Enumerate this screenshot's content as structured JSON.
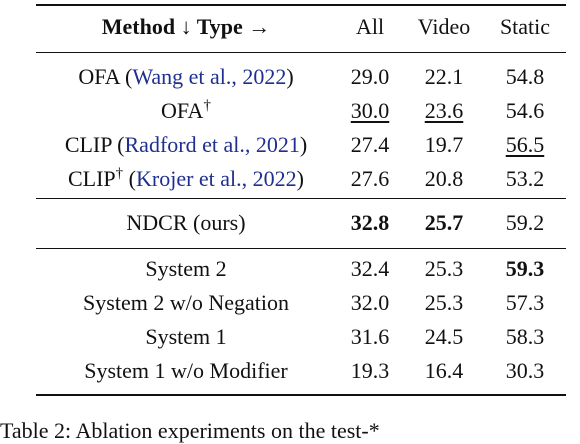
{
  "table": {
    "header": {
      "method_label": "Method",
      "method_arrow": "↓",
      "type_label": "Type",
      "type_arrow": "→",
      "columns": [
        "All",
        "Video",
        "Static"
      ]
    },
    "rows": [
      {
        "name": "OFA",
        "dagger": "",
        "cite": "Wang et al., 2022",
        "all": "29.0",
        "video": "22.1",
        "static": "54.8"
      },
      {
        "name": "OFA",
        "dagger": "†",
        "cite": "",
        "all": "30.0",
        "video": "23.6",
        "static": "54.6",
        "underline": [
          "all",
          "video"
        ]
      },
      {
        "name": "CLIP",
        "dagger": "",
        "cite": "Radford et al., 2021",
        "all": "27.4",
        "video": "19.7",
        "static": "56.5",
        "underline": [
          "static"
        ]
      },
      {
        "name": "CLIP",
        "dagger": "†",
        "cite": "Krojer et al., 2022",
        "all": "27.6",
        "video": "20.8",
        "static": "53.2"
      },
      {
        "name": "NDCR (ours)",
        "dagger": "",
        "cite": "",
        "all": "32.8",
        "video": "25.7",
        "static": "59.2",
        "bold": [
          "all",
          "video"
        ]
      },
      {
        "name": "System 2",
        "dagger": "",
        "cite": "",
        "all": "32.4",
        "video": "25.3",
        "static": "59.3",
        "bold": [
          "static"
        ]
      },
      {
        "name": "System 2 w/o Negation",
        "dagger": "",
        "cite": "",
        "all": "32.0",
        "video": "25.3",
        "static": "57.3"
      },
      {
        "name": "System 1",
        "dagger": "",
        "cite": "",
        "all": "31.6",
        "video": "24.5",
        "static": "58.3"
      },
      {
        "name": "System 1 w/o Modifier",
        "dagger": "",
        "cite": "",
        "all": "19.3",
        "video": "16.4",
        "static": "30.3"
      }
    ]
  },
  "caption": {
    "text": "Table 2:  Ablation experiments on the test-*"
  }
}
